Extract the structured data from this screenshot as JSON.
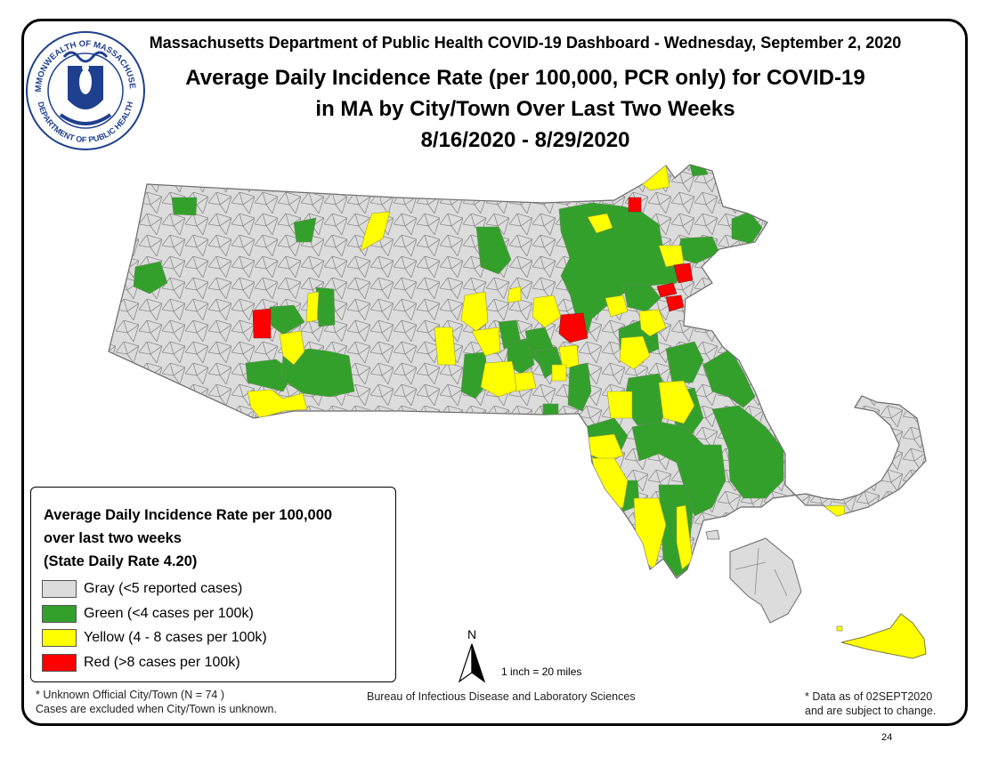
{
  "header": {
    "department_line": "Massachusetts Department of Public Health COVID-19 Dashboard - Wednesday, September 2, 2020",
    "title_line1": "Average Daily Incidence Rate (per 100,000, PCR only) for COVID-19",
    "title_line2": "in MA by City/Town Over Last Two Weeks",
    "title_line3": "8/16/2020 - 8/29/2020"
  },
  "seal": {
    "outer_text": "COMMONWEALTH OF MASSACHUSETTS",
    "inner_text": "DEPARTMENT OF PUBLIC HEALTH"
  },
  "legend": {
    "title_line1": "Average Daily Incidence Rate per 100,000",
    "title_line2": "over last two weeks",
    "title_line3": "(State Daily Rate 4.20)",
    "items": [
      {
        "label": "Gray (<5 reported cases)",
        "color": "#dcdcdc"
      },
      {
        "label": "Green (<4 cases per 100k)",
        "color": "#33a02c"
      },
      {
        "label": "Yellow (4 - 8 cases per 100k)",
        "color": "#ffff00"
      },
      {
        "label": "Red (>8 cases per 100k)",
        "color": "#ff0000"
      }
    ]
  },
  "notes": {
    "unknown_line1": "* Unknown Official City/Town (N = 74 )",
    "unknown_line2": "Cases are excluded when City/Town is unknown.",
    "bureau": "Bureau of Infectious Disease and Laboratory Sciences",
    "data_line1": "* Data as of 02SEPT2020",
    "data_line2": "and are subject to change."
  },
  "map": {
    "north_label": "N",
    "scale": "1 inch = 20 miles",
    "base_color": "#dcdcdc",
    "border_color": "#8a8a8a"
  },
  "page_number": "24"
}
